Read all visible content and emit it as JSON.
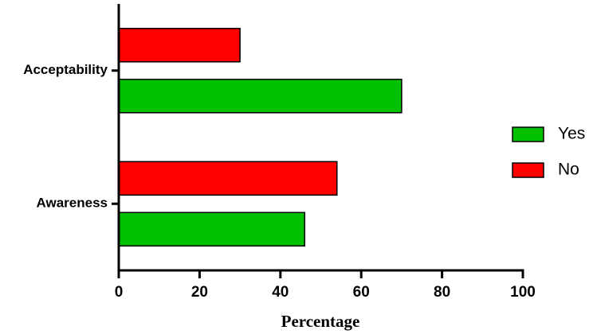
{
  "chart_data": {
    "type": "hbar",
    "xlabel": "Percentage",
    "categories": [
      "Acceptability",
      "Awareness"
    ],
    "series": [
      {
        "name": "Yes",
        "color": "#00c000",
        "values": [
          70,
          46
        ]
      },
      {
        "name": "No",
        "color": "#ff0000",
        "values": [
          30,
          54
        ]
      }
    ],
    "xlim": [
      0,
      100
    ],
    "xticks": [
      0,
      20,
      40,
      60,
      80,
      100
    ],
    "legend": "right"
  }
}
